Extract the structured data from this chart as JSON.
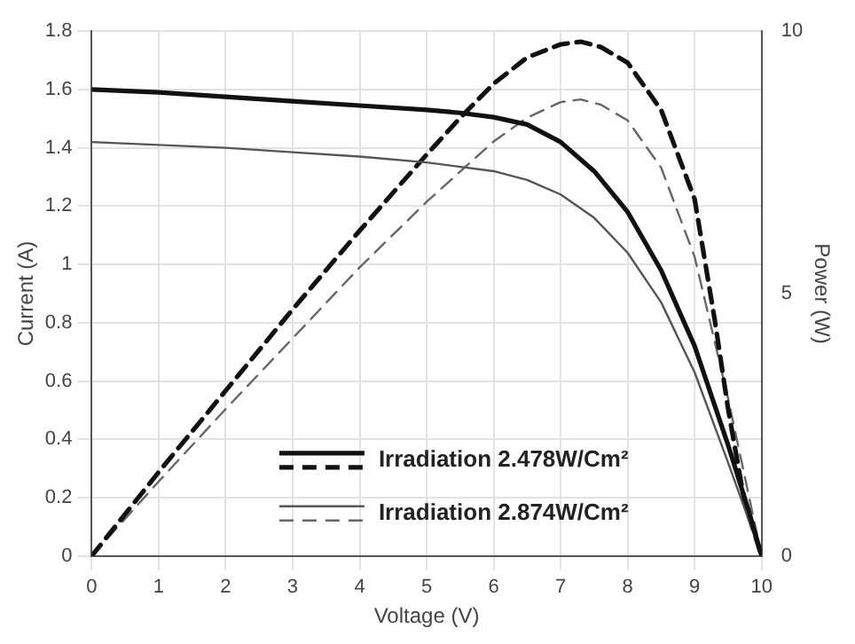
{
  "chart_data": {
    "type": "line",
    "xlabel": "Voltage (V)",
    "ylabel": "Current (A)",
    "y2label": "Power (W)",
    "xlim": [
      0,
      10
    ],
    "xticks": [
      0,
      1,
      2,
      3,
      4,
      5,
      6,
      7,
      8,
      9,
      10
    ],
    "ylim": [
      0,
      1.8
    ],
    "yticks": [
      0,
      0.2,
      0.4,
      0.6,
      0.8,
      1,
      1.2,
      1.4,
      1.6,
      1.8
    ],
    "y2lim": [
      0,
      10
    ],
    "y2ticks": [
      0,
      5,
      10
    ],
    "grid": true,
    "legend": "bottom",
    "marker": "none",
    "series": [
      {
        "name": "Irradiation 2.478W/Cm²",
        "color": "#111111",
        "line_style": "solid",
        "x": [
          0,
          1,
          2,
          3,
          4,
          5,
          5.5,
          6,
          6.5,
          7,
          7.5,
          8,
          8.5,
          9,
          9.5,
          9.8,
          10
        ],
        "values": [
          1.6,
          1.59,
          1.575,
          1.56,
          1.545,
          1.53,
          1.52,
          1.505,
          1.48,
          1.42,
          1.32,
          1.18,
          0.98,
          0.72,
          0.38,
          0.16,
          0
        ]
      },
      {
        "name": "Irradiation 2.874W/Cm²",
        "color": "#555555",
        "line_style": "solid",
        "x": [
          0,
          1,
          2,
          3,
          4,
          5,
          6,
          6.5,
          7,
          7.5,
          8,
          8.5,
          9,
          9.5,
          10
        ],
        "values": [
          1.42,
          1.41,
          1.4,
          1.385,
          1.37,
          1.35,
          1.32,
          1.29,
          1.24,
          1.16,
          1.04,
          0.87,
          0.63,
          0.32,
          0
        ]
      },
      {
        "color": "#111111",
        "line_style": "dashed",
        "axis": "y2",
        "x": [
          0,
          1,
          2,
          3,
          4,
          5,
          5.5,
          6,
          6.5,
          7,
          7.3,
          7.6,
          8,
          8.5,
          9,
          9.3,
          9.5,
          9.75,
          10
        ],
        "values": [
          0,
          1.6,
          3.15,
          4.7,
          6.2,
          7.65,
          8.35,
          9.0,
          9.5,
          9.75,
          9.8,
          9.7,
          9.4,
          8.5,
          6.8,
          4.5,
          2.8,
          1.0,
          0
        ]
      },
      {
        "color": "#666666",
        "line_style": "dashed",
        "axis": "y2",
        "x": [
          0,
          1,
          2,
          3,
          4,
          5,
          6,
          6.5,
          7,
          7.3,
          7.6,
          8,
          8.5,
          9,
          9.5,
          10
        ],
        "values": [
          0,
          1.42,
          2.8,
          4.15,
          5.5,
          6.75,
          7.9,
          8.35,
          8.65,
          8.7,
          8.6,
          8.3,
          7.4,
          5.7,
          3.0,
          0
        ]
      }
    ]
  }
}
